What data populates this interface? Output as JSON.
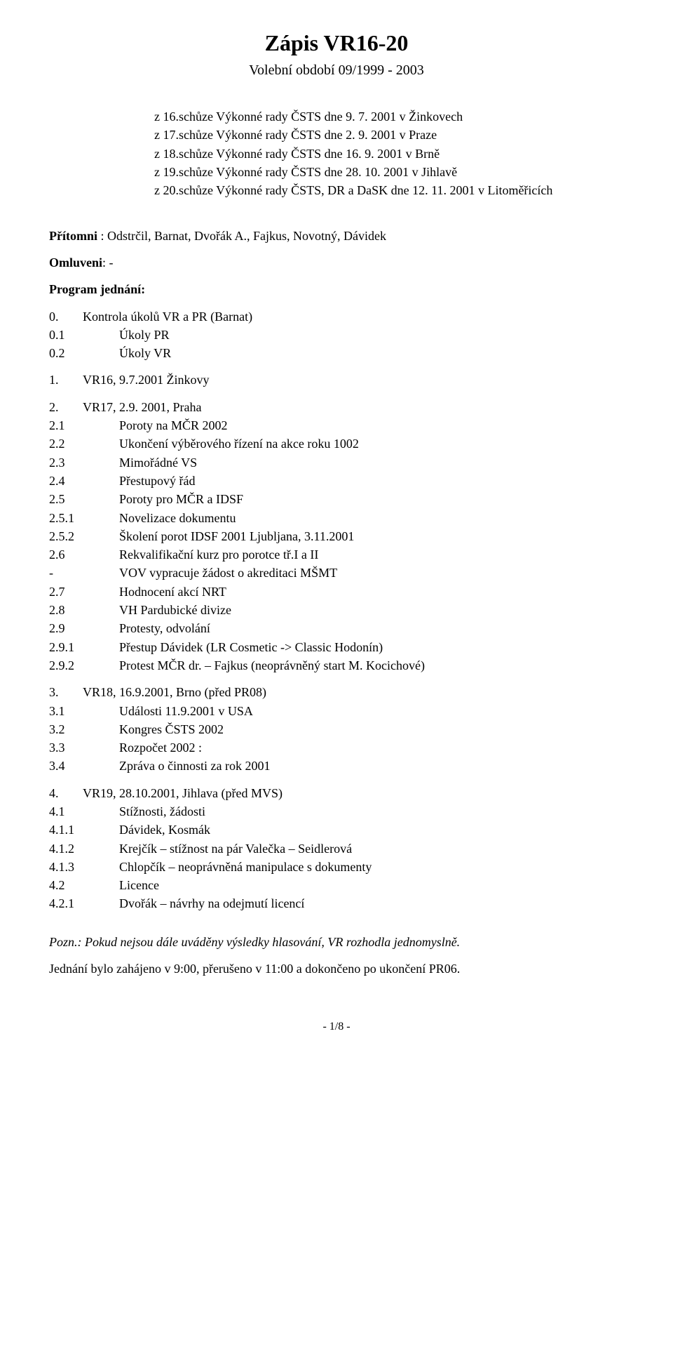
{
  "title": "Zápis VR16-20",
  "subtitle": "Volební období 09/1999 - 2003",
  "meetings": [
    "z 16.schůze Výkonné rady ČSTS dne 9. 7. 2001 v Žinkovech",
    "z 17.schůze Výkonné rady ČSTS dne 2. 9. 2001 v Praze",
    "z 18.schůze Výkonné rady ČSTS dne 16. 9. 2001 v Brně",
    "z 19.schůze Výkonné rady ČSTS dne 28. 10. 2001 v Jihlavě",
    "z 20.schůze Výkonné rady ČSTS, DR a DaSK dne 12. 11. 2001 v Litoměřicích"
  ],
  "present_label": "Přítomni",
  "present_text": " : Odstrčil, Barnat, Dvořák A., Fajkus, Novotný, Dávidek",
  "excused_label": "Omluveni",
  "excused_text": ": -",
  "agenda_label": "Program jednání:",
  "toc": [
    {
      "n": "0.",
      "t": "Kontrola úkolů VR a PR (Barnat)",
      "lvl": 1
    },
    {
      "n": "0.1",
      "t": "Úkoly PR",
      "lvl": 2
    },
    {
      "n": "0.2",
      "t": "Úkoly VR",
      "lvl": 2
    },
    {
      "n": "1.",
      "t": "VR16, 9.7.2001 Žinkovy",
      "lvl": 1,
      "gap": true
    },
    {
      "n": "2.",
      "t": "VR17, 2.9. 2001, Praha",
      "lvl": 1,
      "gap": true
    },
    {
      "n": "2.1",
      "t": "Poroty na MČR 2002",
      "lvl": 2
    },
    {
      "n": "2.2",
      "t": "Ukončení výběrového řízení na akce roku 1002",
      "lvl": 2
    },
    {
      "n": "2.3",
      "t": "Mimořádné VS",
      "lvl": 2
    },
    {
      "n": "2.4",
      "t": "Přestupový řád",
      "lvl": 2
    },
    {
      "n": "2.5",
      "t": "Poroty pro MČR a IDSF",
      "lvl": 2
    },
    {
      "n": "2.5.1",
      "t": "Novelizace dokumentu",
      "lvl": 3
    },
    {
      "n": "2.5.2",
      "t": "Školení porot IDSF 2001 Ljubljana, 3.11.2001",
      "lvl": 3
    },
    {
      "n": "2.6",
      "t": "Rekvalifikační kurz pro porotce tř.I a II",
      "lvl": 2
    },
    {
      "n": "-",
      "t": "VOV vypracuje žádost o akreditaci MŠMT",
      "lvl": "dash"
    },
    {
      "n": "2.7",
      "t": "Hodnocení akcí NRT",
      "lvl": 2
    },
    {
      "n": "2.8",
      "t": "VH Pardubické divize",
      "lvl": 2
    },
    {
      "n": "2.9",
      "t": "Protesty, odvolání",
      "lvl": 2
    },
    {
      "n": "2.9.1",
      "t": "Přestup Dávidek (LR Cosmetic -> Classic Hodonín)",
      "lvl": 3
    },
    {
      "n": "2.9.2",
      "t": "Protest MČR dr. – Fajkus (neoprávněný start M. Kocichové)",
      "lvl": 3
    },
    {
      "n": "3.",
      "t": "VR18, 16.9.2001, Brno (před PR08)",
      "lvl": 1,
      "gap": true
    },
    {
      "n": "3.1",
      "t": "Události 11.9.2001 v USA",
      "lvl": 2
    },
    {
      "n": "3.2",
      "t": "Kongres ČSTS 2002",
      "lvl": 2
    },
    {
      "n": "3.3",
      "t": "Rozpočet 2002 :",
      "lvl": 2
    },
    {
      "n": "3.4",
      "t": "Zpráva o činnosti za rok 2001",
      "lvl": 2
    },
    {
      "n": "4.",
      "t": "VR19, 28.10.2001, Jihlava (před MVS)",
      "lvl": 1,
      "gap": true
    },
    {
      "n": "4.1",
      "t": "Stížnosti, žádosti",
      "lvl": 2
    },
    {
      "n": "4.1.1",
      "t": "Dávidek, Kosmák",
      "lvl": 3
    },
    {
      "n": "4.1.2",
      "t": "Krejčík – stížnost na pár Valečka – Seidlerová",
      "lvl": 3
    },
    {
      "n": "4.1.3",
      "t": "Chlopčík – neoprávněná manipulace s dokumenty",
      "lvl": 3
    },
    {
      "n": "4.2",
      "t": "Licence",
      "lvl": 2
    },
    {
      "n": "4.2.1",
      "t": "Dvořák – návrhy na odejmutí licencí",
      "lvl": 3
    }
  ],
  "note": "Pozn.: Pokud nejsou dále uváděny výsledky hlasování, VR rozhodla jednomyslně.",
  "closing": "Jednání bylo zahájeno v 9:00, přerušeno v 11:00 a dokončeno po ukončení PR06.",
  "pagenum": "- 1/8 -"
}
